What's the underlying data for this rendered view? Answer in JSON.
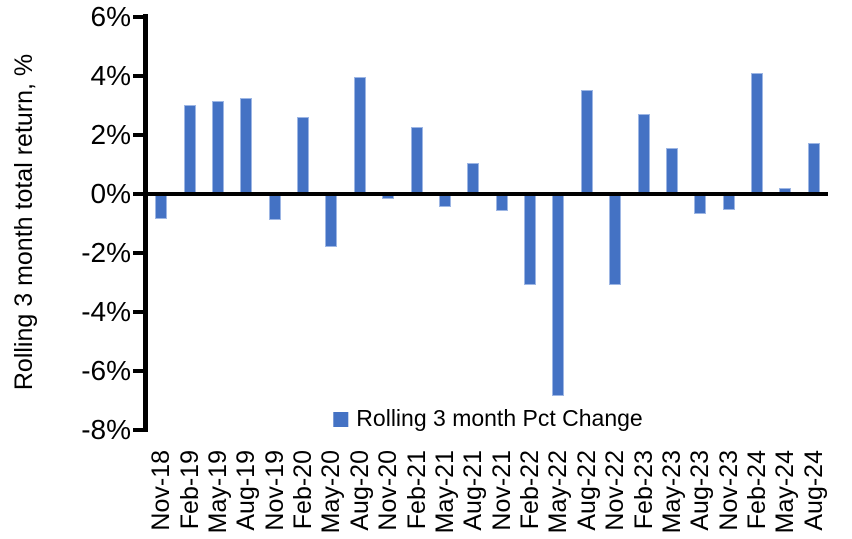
{
  "chart_data": {
    "type": "bar",
    "title": "",
    "ylabel": "Rolling 3 month total return, %",
    "xlabel": "",
    "grid": false,
    "legend_position": "bottom-center",
    "legend": [
      {
        "label": "Rolling 3 month Pct Change",
        "color": "#4472C4"
      }
    ],
    "categories": [
      "Nov-18",
      "Feb-19",
      "May-19",
      "Aug-19",
      "Nov-19",
      "Feb-20",
      "May-20",
      "Aug-20",
      "Nov-20",
      "Feb-21",
      "May-21",
      "Aug-21",
      "Nov-21",
      "Feb-22",
      "May-22",
      "Aug-22",
      "Nov-22",
      "Feb-23",
      "May-23",
      "Aug-23",
      "Nov-23",
      "Feb-24",
      "May-24",
      "Aug-24"
    ],
    "series": [
      {
        "name": "Rolling 3 month Pct Change",
        "values": [
          -0.85,
          3.0,
          3.15,
          3.25,
          -0.9,
          2.6,
          -1.8,
          3.95,
          -0.2,
          2.25,
          -0.45,
          1.05,
          -0.6,
          -3.1,
          -6.85,
          3.5,
          -3.1,
          2.7,
          1.55,
          -0.7,
          -0.55,
          4.1,
          0.2,
          1.7
        ]
      }
    ],
    "y_ticks": [
      {
        "label": "6%",
        "value": 6
      },
      {
        "label": "4%",
        "value": 4
      },
      {
        "label": "2%",
        "value": 2
      },
      {
        "label": "0%",
        "value": 0
      },
      {
        "label": "-2%",
        "value": -2
      },
      {
        "label": "-4%",
        "value": -4
      },
      {
        "label": "-6%",
        "value": -6
      },
      {
        "label": "-8%",
        "value": -8
      }
    ],
    "ylim": [
      -8,
      6
    ],
    "bar_color": "#4472C4",
    "bar_border_color": "#9DB6E4",
    "axis_color": "#000000",
    "background_color": "#FFFFFF"
  }
}
